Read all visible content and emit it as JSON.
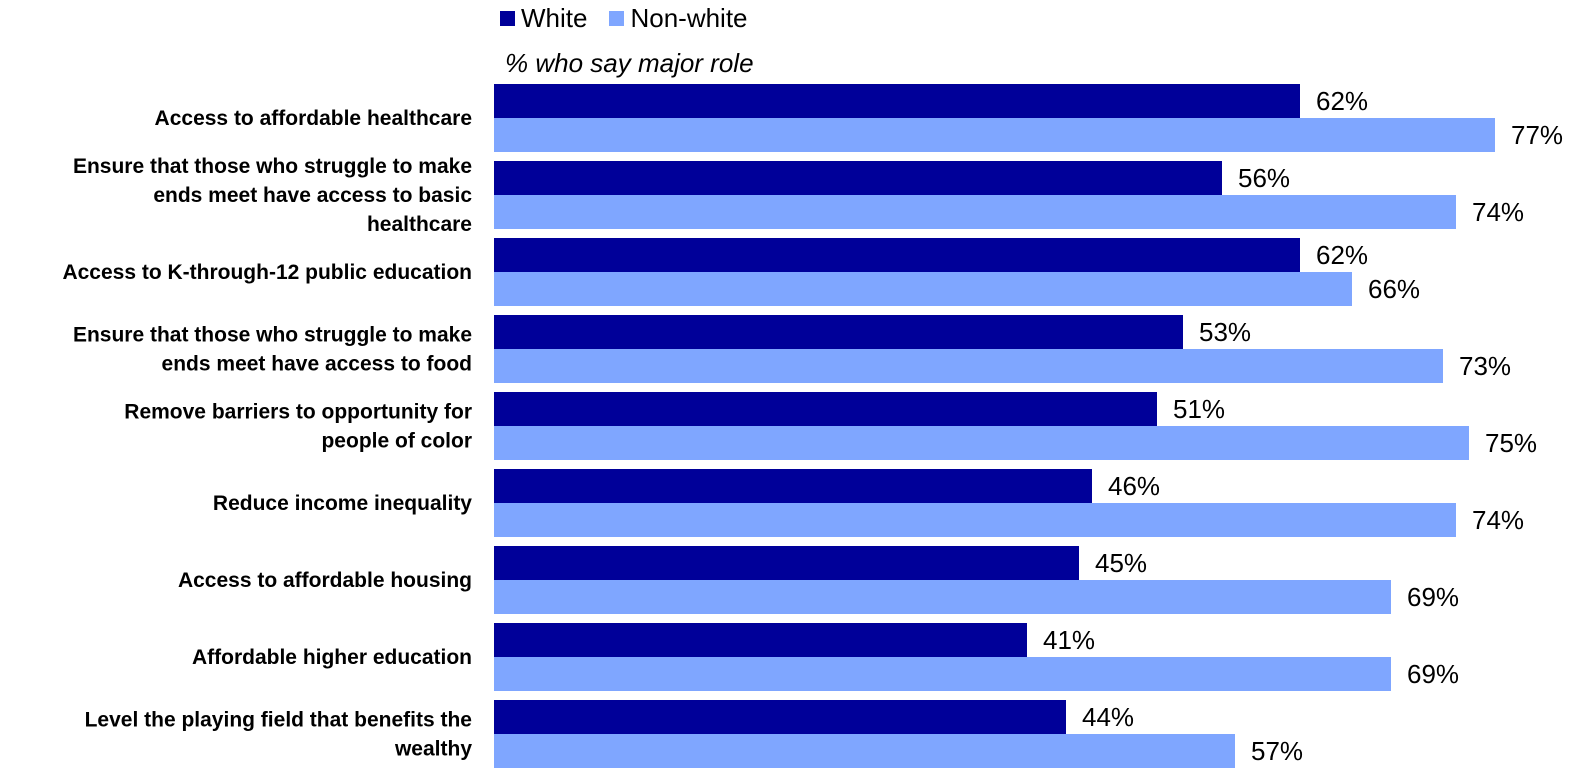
{
  "chart_data": {
    "type": "bar",
    "orientation": "horizontal",
    "subtitle": "% who say major role",
    "legend_position": "top",
    "categories": [
      [
        "Access to affordable healthcare"
      ],
      [
        "Ensure that those who struggle to make",
        "ends meet have access to basic",
        "healthcare"
      ],
      [
        "Access to K-through-12 public education"
      ],
      [
        "Ensure that those who struggle to make",
        "ends meet have access to food"
      ],
      [
        "Remove barriers to opportunity for",
        "people of color"
      ],
      [
        "Reduce income inequality"
      ],
      [
        "Access to affordable housing"
      ],
      [
        "Affordable higher education"
      ],
      [
        "Level the playing field that benefits the",
        "wealthy"
      ]
    ],
    "series": [
      {
        "name": "White",
        "color": "#000099",
        "values": [
          62,
          56,
          62,
          53,
          51,
          46,
          45,
          41,
          44
        ]
      },
      {
        "name": "Non-white",
        "color": "#7FA6FF",
        "values": [
          77,
          74,
          66,
          73,
          75,
          74,
          69,
          69,
          57
        ]
      }
    ],
    "value_suffix": "%",
    "xlim": [
      0,
      100
    ],
    "grid": false
  }
}
